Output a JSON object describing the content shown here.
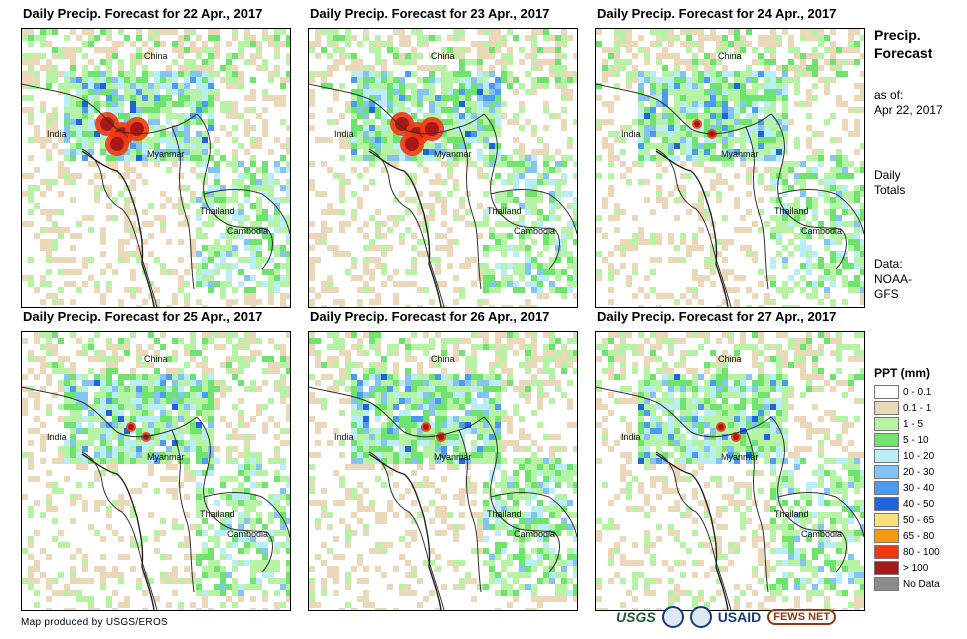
{
  "panels": [
    {
      "title": "Daily Precip. Forecast for 22 Apr., 2017"
    },
    {
      "title": "Daily Precip. Forecast for 23 Apr., 2017"
    },
    {
      "title": "Daily Precip. Forecast for 24 Apr., 2017"
    },
    {
      "title": "Daily Precip. Forecast for 25 Apr., 2017"
    },
    {
      "title": "Daily Precip. Forecast for 26 Apr., 2017"
    },
    {
      "title": "Daily Precip. Forecast for 27 Apr., 2017"
    }
  ],
  "map_labels": {
    "china": "China",
    "india": "India",
    "myanmar": "Myanmar",
    "thailand": "Thailand",
    "cambodia": "Cambodia"
  },
  "sidebar": {
    "title_line1": "Precip.",
    "title_line2": "Forecast",
    "asof_line1": "as of:",
    "asof_line2": "Apr 22, 2017",
    "totals_line1": "Daily",
    "totals_line2": "Totals",
    "data_line1": "Data:",
    "data_line2": "NOAA-",
    "data_line3": "GFS"
  },
  "legend": {
    "title": "PPT (mm)",
    "items": [
      {
        "label": "0 - 0.1",
        "color": "#ffffff"
      },
      {
        "label": "0.1 - 1",
        "color": "#ead8b8"
      },
      {
        "label": "1 - 5",
        "color": "#b7f3a4"
      },
      {
        "label": "5 - 10",
        "color": "#6ee36e"
      },
      {
        "label": "10 - 20",
        "color": "#b9eef7"
      },
      {
        "label": "20 - 30",
        "color": "#84c3f2"
      },
      {
        "label": "30 - 40",
        "color": "#4d9bf0"
      },
      {
        "label": "40 - 50",
        "color": "#1f63e0"
      },
      {
        "label": "50 - 65",
        "color": "#f7e07c"
      },
      {
        "label": "65 - 80",
        "color": "#f59a0f"
      },
      {
        "label": "80 - 100",
        "color": "#ef3a10"
      },
      {
        "label": "> 100",
        "color": "#a81818"
      },
      {
        "label": "No Data",
        "color": "#8c8c8c"
      }
    ]
  },
  "credit": "Map produced by USGS/EROS",
  "logos": {
    "usgs": "USGS",
    "usaid": "USAID",
    "fews": "FEWS NET"
  }
}
